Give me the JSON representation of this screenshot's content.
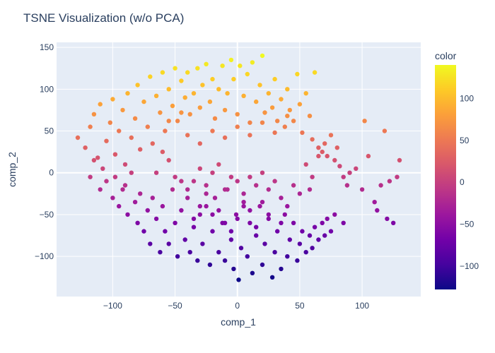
{
  "chart_data": {
    "type": "scatter",
    "title": "TSNE Visualization (w/o PCA)",
    "xlabel": "comp_1",
    "ylabel": "comp_2",
    "xlim": [
      -145,
      147
    ],
    "ylim": [
      -148,
      156
    ],
    "xticks": [
      -100,
      -50,
      0,
      50,
      100
    ],
    "xtick_labels": [
      "−100",
      "−50",
      "0",
      "50",
      "100"
    ],
    "yticks": [
      -100,
      -50,
      0,
      50,
      100,
      150
    ],
    "ytick_labels": [
      "−100",
      "−50",
      "0",
      "50",
      "100",
      "150"
    ],
    "grid": true,
    "colorbar": {
      "title": "color",
      "range": [
        -128,
        140
      ],
      "ticks": [
        -100,
        -50,
        0,
        50,
        100
      ],
      "tick_labels": [
        "−100",
        "−50",
        "0",
        "50",
        "100"
      ],
      "colorscale": [
        "#0d0887",
        "#46039f",
        "#7201a8",
        "#9c179e",
        "#bd3786",
        "#d8576b",
        "#ed7953",
        "#fb9f3a",
        "#fdca26",
        "#f0f921"
      ]
    },
    "points": [
      [
        -128,
        42
      ],
      [
        -122,
        30
      ],
      [
        -118,
        55
      ],
      [
        -115,
        70
      ],
      [
        -112,
        18
      ],
      [
        -110,
        82
      ],
      [
        -105,
        38
      ],
      [
        -102,
        60
      ],
      [
        -100,
        88
      ],
      [
        -98,
        22
      ],
      [
        -95,
        50
      ],
      [
        -92,
        75
      ],
      [
        -90,
        10
      ],
      [
        -88,
        95
      ],
      [
        -85,
        42
      ],
      [
        -82,
        65
      ],
      [
        -80,
        105
      ],
      [
        -78,
        28
      ],
      [
        -75,
        85
      ],
      [
        -72,
        55
      ],
      [
        -70,
        115
      ],
      [
        -68,
        35
      ],
      [
        -65,
        92
      ],
      [
        -62,
        72
      ],
      [
        -60,
        120
      ],
      [
        -58,
        50
      ],
      [
        -55,
        100
      ],
      [
        -52,
        80
      ],
      [
        -50,
        125
      ],
      [
        -48,
        62
      ],
      [
        -45,
        110
      ],
      [
        -42,
        90
      ],
      [
        -40,
        120
      ],
      [
        -38,
        70
      ],
      [
        -35,
        95
      ],
      [
        -32,
        125
      ],
      [
        -30,
        78
      ],
      [
        -28,
        105
      ],
      [
        -25,
        130
      ],
      [
        -22,
        85
      ],
      [
        -20,
        112
      ],
      [
        -18,
        65
      ],
      [
        -15,
        100
      ],
      [
        -12,
        128
      ],
      [
        -10,
        75
      ],
      [
        -8,
        95
      ],
      [
        -5,
        135
      ],
      [
        -3,
        112
      ],
      [
        0,
        70
      ],
      [
        2,
        128
      ],
      [
        5,
        92
      ],
      [
        8,
        118
      ],
      [
        10,
        60
      ],
      [
        12,
        132
      ],
      [
        15,
        85
      ],
      [
        18,
        105
      ],
      [
        20,
        140
      ],
      [
        22,
        72
      ],
      [
        25,
        95
      ],
      [
        28,
        78
      ],
      [
        30,
        112
      ],
      [
        32,
        62
      ],
      [
        35,
        88
      ],
      [
        38,
        55
      ],
      [
        40,
        100
      ],
      [
        42,
        75
      ],
      [
        45,
        62
      ],
      [
        48,
        118
      ],
      [
        50,
        82
      ],
      [
        52,
        48
      ],
      [
        55,
        95
      ],
      [
        58,
        68
      ],
      [
        60,
        40
      ],
      [
        62,
        120
      ],
      [
        65,
        30
      ],
      [
        68,
        25
      ],
      [
        70,
        35
      ],
      [
        72,
        20
      ],
      [
        75,
        45
      ],
      [
        78,
        15
      ],
      [
        80,
        30
      ],
      [
        82,
        8
      ],
      [
        85,
        -5
      ],
      [
        88,
        -15
      ],
      [
        90,
        0
      ],
      [
        95,
        5
      ],
      [
        100,
        -20
      ],
      [
        102,
        62
      ],
      [
        105,
        20
      ],
      [
        110,
        -35
      ],
      [
        112,
        -45
      ],
      [
        115,
        -15
      ],
      [
        118,
        50
      ],
      [
        120,
        -55
      ],
      [
        122,
        -10
      ],
      [
        125,
        -60
      ],
      [
        128,
        -5
      ],
      [
        130,
        15
      ],
      [
        -118,
        -5
      ],
      [
        -115,
        15
      ],
      [
        -110,
        -20
      ],
      [
        -108,
        5
      ],
      [
        -105,
        -10
      ],
      [
        -100,
        -30
      ],
      [
        -98,
        -5
      ],
      [
        -95,
        -40
      ],
      [
        -92,
        -20
      ],
      [
        -90,
        -15
      ],
      [
        -88,
        -50
      ],
      [
        -85,
        0
      ],
      [
        -82,
        -35
      ],
      [
        -80,
        -60
      ],
      [
        -78,
        -25
      ],
      [
        -75,
        -70
      ],
      [
        -72,
        -45
      ],
      [
        -70,
        -85
      ],
      [
        -68,
        -30
      ],
      [
        -65,
        -55
      ],
      [
        -62,
        -95
      ],
      [
        -60,
        -40
      ],
      [
        -58,
        -70
      ],
      [
        -55,
        -85
      ],
      [
        -52,
        -20
      ],
      [
        -50,
        -60
      ],
      [
        -48,
        -100
      ],
      [
        -45,
        -45
      ],
      [
        -42,
        -80
      ],
      [
        -40,
        -30
      ],
      [
        -38,
        -95
      ],
      [
        -35,
        -65
      ],
      [
        -32,
        -105
      ],
      [
        -30,
        -50
      ],
      [
        -28,
        -85
      ],
      [
        -25,
        -40
      ],
      [
        -22,
        -110
      ],
      [
        -20,
        -70
      ],
      [
        -18,
        -30
      ],
      [
        -15,
        -95
      ],
      [
        -12,
        -60
      ],
      [
        -10,
        -105
      ],
      [
        -8,
        -20
      ],
      [
        -5,
        -80
      ],
      [
        -3,
        -115
      ],
      [
        -1,
        -50
      ],
      [
        1,
        -128
      ],
      [
        3,
        -90
      ],
      [
        5,
        -35
      ],
      [
        8,
        -100
      ],
      [
        10,
        -60
      ],
      [
        12,
        -120
      ],
      [
        15,
        -75
      ],
      [
        18,
        -40
      ],
      [
        20,
        -110
      ],
      [
        22,
        -85
      ],
      [
        25,
        -55
      ],
      [
        28,
        -125
      ],
      [
        30,
        -95
      ],
      [
        32,
        -70
      ],
      [
        35,
        -115
      ],
      [
        38,
        -50
      ],
      [
        40,
        -100
      ],
      [
        42,
        -80
      ],
      [
        45,
        -60
      ],
      [
        48,
        -105
      ],
      [
        50,
        -85
      ],
      [
        52,
        -70
      ],
      [
        55,
        -95
      ],
      [
        58,
        -75
      ],
      [
        60,
        -90
      ],
      [
        62,
        -65
      ],
      [
        65,
        -80
      ],
      [
        68,
        -60
      ],
      [
        70,
        -75
      ],
      [
        72,
        -55
      ],
      [
        75,
        -70
      ],
      [
        78,
        -50
      ],
      [
        85,
        -60
      ],
      [
        -35,
        -10
      ],
      [
        -30,
        5
      ],
      [
        -25,
        -15
      ],
      [
        -20,
        0
      ],
      [
        -15,
        10
      ],
      [
        -10,
        -20
      ],
      [
        -5,
        -5
      ],
      [
        0,
        -10
      ],
      [
        5,
        -25
      ],
      [
        10,
        -5
      ],
      [
        15,
        -15
      ],
      [
        20,
        0
      ],
      [
        25,
        -20
      ],
      [
        30,
        -10
      ],
      [
        -40,
        -20
      ],
      [
        35,
        -30
      ],
      [
        -30,
        -40
      ],
      [
        -20,
        -50
      ],
      [
        -10,
        -60
      ],
      [
        0,
        -55
      ],
      [
        10,
        -45
      ],
      [
        20,
        -35
      ],
      [
        -25,
        -25
      ],
      [
        15,
        -65
      ],
      [
        -5,
        -70
      ],
      [
        5,
        -40
      ],
      [
        25,
        -50
      ],
      [
        -15,
        -45
      ],
      [
        35,
        -60
      ],
      [
        -35,
        -55
      ],
      [
        40,
        -40
      ],
      [
        -45,
        -10
      ],
      [
        45,
        -15
      ],
      [
        -50,
        -5
      ],
      [
        50,
        -25
      ],
      [
        -55,
        15
      ],
      [
        -60,
        25
      ],
      [
        -65,
        0
      ],
      [
        55,
        10
      ],
      [
        60,
        -5
      ],
      [
        65,
        20
      ],
      [
        58,
        -20
      ],
      [
        -40,
        45
      ],
      [
        -30,
        35
      ],
      [
        -20,
        50
      ],
      [
        -10,
        42
      ],
      [
        0,
        55
      ],
      [
        10,
        45
      ],
      [
        20,
        60
      ],
      [
        30,
        48
      ],
      [
        40,
        68
      ],
      [
        -55,
        62
      ],
      [
        -45,
        72
      ]
    ]
  }
}
